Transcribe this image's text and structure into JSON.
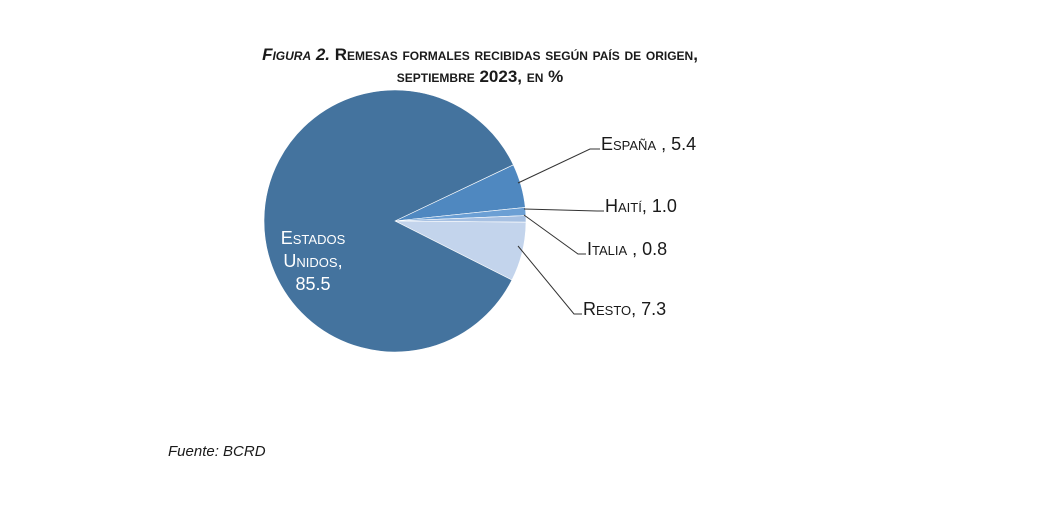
{
  "figure_label": "Figura 2.",
  "title_line1": "Remesas formales recibidas según país de origen,",
  "title_line2": "septiembre 2023, en %",
  "source": "Fuente: BCRD",
  "chart_data": {
    "type": "pie",
    "title": "Figura 2. Remesas formales recibidas según país de origen, septiembre 2023, en %",
    "slices": [
      {
        "label": "Estados Unidos",
        "value": 85.5,
        "color": "#44739e"
      },
      {
        "label": "España",
        "value": 5.4,
        "color": "#4f88c0"
      },
      {
        "label": "Haití",
        "value": 1.0,
        "color": "#6b9fd4"
      },
      {
        "label": "Italia",
        "value": 0.8,
        "color": "#a6c0e2"
      },
      {
        "label": "Resto",
        "value": 7.3,
        "color": "#c3d4ec"
      }
    ],
    "data_labels": {
      "estados_unidos": [
        "Estados",
        "Unidos,",
        "85.5"
      ],
      "espana": "España , 5.4",
      "haiti": "Haití, 1.0",
      "italia": "Italia , 0.8",
      "resto": "Resto, 7.3"
    }
  }
}
